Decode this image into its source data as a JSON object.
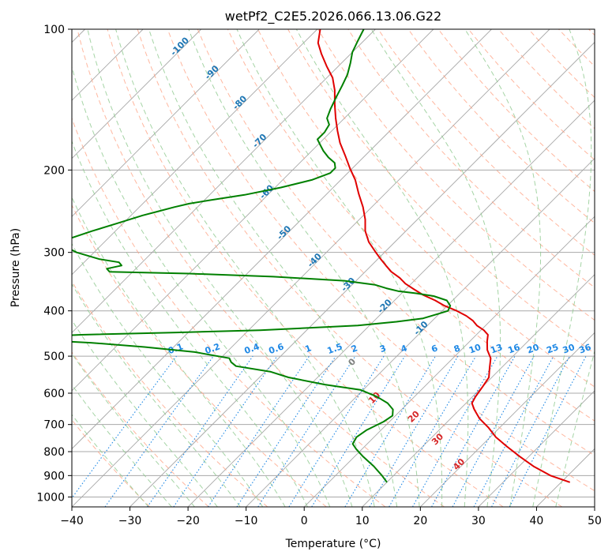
{
  "chart_data": {
    "type": "line",
    "subtype": "skew-t log-p diagram",
    "title": "wetPf2_C2E5.2026.066.13.06.G22",
    "xlabel": "Temperature (°C)",
    "ylabel": "Pressure (hPa)",
    "xlim": [
      -40,
      50
    ],
    "ylim": [
      1050,
      100
    ],
    "y_scale": "log",
    "x_ticks": [
      "−40",
      "−30",
      "−20",
      "−10",
      "0",
      "10",
      "20",
      "30",
      "40",
      "50"
    ],
    "y_ticks": [
      "100",
      "200",
      "300",
      "400",
      "500",
      "600",
      "700",
      "800",
      "900",
      "1000"
    ],
    "grid": "horizontal at pressure ticks",
    "series": [
      {
        "color": "#e00000",
        "points": [
          [
            41.5,
            930
          ],
          [
            37.0,
            900
          ],
          [
            32.5,
            860
          ],
          [
            28.5,
            820
          ],
          [
            24.5,
            780
          ],
          [
            21.0,
            745
          ],
          [
            18.0,
            710
          ],
          [
            15.0,
            680
          ],
          [
            12.5,
            650
          ],
          [
            11.0,
            630
          ],
          [
            10.5,
            610
          ],
          [
            10.0,
            580
          ],
          [
            9.5,
            555
          ],
          [
            8.0,
            530
          ],
          [
            6.5,
            505
          ],
          [
            4.5,
            485
          ],
          [
            3.0,
            465
          ],
          [
            2.0,
            450
          ],
          [
            0.5,
            440
          ],
          [
            -1.5,
            430
          ],
          [
            -3.0,
            420
          ],
          [
            -5.0,
            410
          ],
          [
            -7.5,
            400
          ],
          [
            -10.5,
            390
          ],
          [
            -13.0,
            380
          ],
          [
            -16.0,
            370
          ],
          [
            -18.5,
            360
          ],
          [
            -21.0,
            350
          ],
          [
            -23.0,
            340
          ],
          [
            -25.5,
            330
          ],
          [
            -27.5,
            320
          ],
          [
            -29.5,
            310
          ],
          [
            -31.5,
            300
          ],
          [
            -34.5,
            285
          ],
          [
            -37.0,
            270
          ],
          [
            -39.0,
            255
          ],
          [
            -41.5,
            240
          ],
          [
            -44.5,
            225
          ],
          [
            -47.5,
            210
          ],
          [
            -50.5,
            198
          ],
          [
            -53.5,
            186
          ],
          [
            -56.5,
            175
          ],
          [
            -59.0,
            165
          ],
          [
            -61.5,
            155
          ],
          [
            -64.0,
            145
          ],
          [
            -66.5,
            135
          ],
          [
            -69.0,
            127
          ],
          [
            -72.0,
            120
          ],
          [
            -75.0,
            113
          ],
          [
            -77.5,
            107
          ],
          [
            -79.5,
            100
          ]
        ]
      },
      {
        "color": "#008000",
        "points": [
          [
            10.0,
            930
          ],
          [
            8.0,
            900
          ],
          [
            5.0,
            860
          ],
          [
            1.5,
            820
          ],
          [
            -1.0,
            790
          ],
          [
            -2.5,
            770
          ],
          [
            -3.0,
            745
          ],
          [
            -2.5,
            720
          ],
          [
            -1.0,
            690
          ],
          [
            -0.5,
            670
          ],
          [
            -1.5,
            650
          ],
          [
            -3.5,
            630
          ],
          [
            -6.5,
            610
          ],
          [
            -10.5,
            590
          ],
          [
            -17.5,
            575
          ],
          [
            -25.0,
            555
          ],
          [
            -29.0,
            540
          ],
          [
            -36.0,
            525
          ],
          [
            -37.5,
            515
          ],
          [
            -38.5,
            505
          ],
          [
            -45.5,
            490
          ],
          [
            -55.0,
            478
          ],
          [
            -65.0,
            468
          ],
          [
            -78.0,
            460
          ],
          [
            -78.0,
            455
          ],
          [
            -68.0,
            450
          ],
          [
            -52.0,
            445
          ],
          [
            -38.0,
            440
          ],
          [
            -30.0,
            435
          ],
          [
            -22.0,
            430
          ],
          [
            -16.0,
            422
          ],
          [
            -12.0,
            415
          ],
          [
            -10.0,
            405
          ],
          [
            -9.0,
            400
          ],
          [
            -9.5,
            390
          ],
          [
            -11.0,
            380
          ],
          [
            -14.0,
            372
          ],
          [
            -17.5,
            367
          ],
          [
            -21.0,
            363
          ],
          [
            -23.5,
            358
          ],
          [
            -26.0,
            352
          ],
          [
            -32.0,
            345
          ],
          [
            -45.0,
            338
          ],
          [
            -60.0,
            333
          ],
          [
            -74.0,
            330
          ],
          [
            -75.0,
            325
          ],
          [
            -73.0,
            320
          ],
          [
            -74.0,
            315
          ],
          [
            -78.0,
            310
          ],
          [
            -83.0,
            300
          ],
          [
            -86.5,
            290
          ],
          [
            -86.5,
            280
          ],
          [
            -84.0,
            270
          ],
          [
            -81.0,
            260
          ],
          [
            -78.0,
            250
          ],
          [
            -76.0,
            245
          ],
          [
            -74.0,
            240
          ],
          [
            -72.0,
            236
          ],
          [
            -69.0,
            232
          ],
          [
            -64.0,
            226
          ],
          [
            -59.0,
            218
          ],
          [
            -55.0,
            210
          ],
          [
            -53.0,
            203
          ],
          [
            -53.0,
            198
          ],
          [
            -54.0,
            193
          ],
          [
            -56.0,
            188
          ],
          [
            -58.0,
            182
          ],
          [
            -59.5,
            177
          ],
          [
            -61.0,
            172
          ],
          [
            -61.0,
            166
          ],
          [
            -61.5,
            160
          ],
          [
            -63.0,
            155
          ],
          [
            -64.0,
            148
          ],
          [
            -65.0,
            140
          ],
          [
            -66.0,
            132
          ],
          [
            -67.0,
            125
          ],
          [
            -68.5,
            118
          ],
          [
            -70.0,
            112
          ],
          [
            -71.0,
            106
          ],
          [
            -72.0,
            100
          ]
        ]
      }
    ],
    "annotations": {
      "dry_adiabat_labels": [
        "-100",
        "-90",
        "-80",
        "-70",
        "-60",
        "-50",
        "-40",
        "-30",
        "-20",
        "-10"
      ],
      "moist_adiabat_labels": [
        "0",
        "10",
        "20",
        "30",
        "40"
      ],
      "mixing_ratio_labels": [
        "0.1",
        "0.2",
        "0.4",
        "0.6",
        "1",
        "1.5",
        "2",
        "3",
        "4",
        "6",
        "8",
        "10",
        "13",
        "16",
        "20",
        "25",
        "30",
        "36"
      ]
    },
    "colors": {
      "temperature": "#e00000",
      "dewpoint": "#008000",
      "isotherms": "#a8a8a8",
      "dry_adiabats": "#ff9f7f",
      "moist_adiabats": "#8fc98f",
      "mixing_ratio": "#1e88e5",
      "dry_adiabat_labels": "#1f77b4",
      "moist_adiabat_labels": "#d62728",
      "zero_label": "#808080"
    }
  }
}
